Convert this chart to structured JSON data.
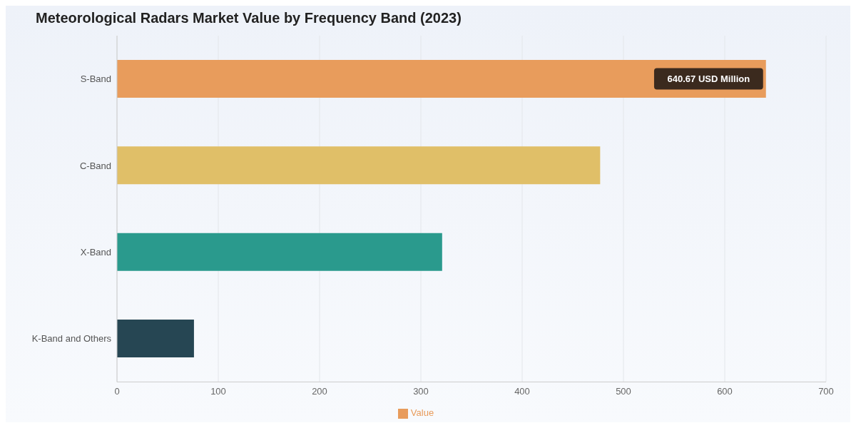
{
  "chart_data": {
    "type": "bar",
    "orientation": "horizontal",
    "title": "Meteorological Radars Market Value by Frequency Band (2023)",
    "categories": [
      "S-Band",
      "C-Band",
      "X-Band",
      "K-Band and Others"
    ],
    "series": [
      {
        "name": "Value",
        "color": "#e89c5c",
        "colors": [
          "#e89c5c",
          "#e0bf68",
          "#2a9a8d",
          "#264653"
        ],
        "values": [
          640.67,
          477,
          321,
          76
        ],
        "value_labels": [
          "640.67 USD Million",
          null,
          null,
          null
        ]
      }
    ],
    "xlim": [
      0,
      700
    ],
    "xticks": [
      0,
      100,
      200,
      300,
      400,
      500,
      600,
      700
    ],
    "grid": "x",
    "legend": "bottom"
  }
}
